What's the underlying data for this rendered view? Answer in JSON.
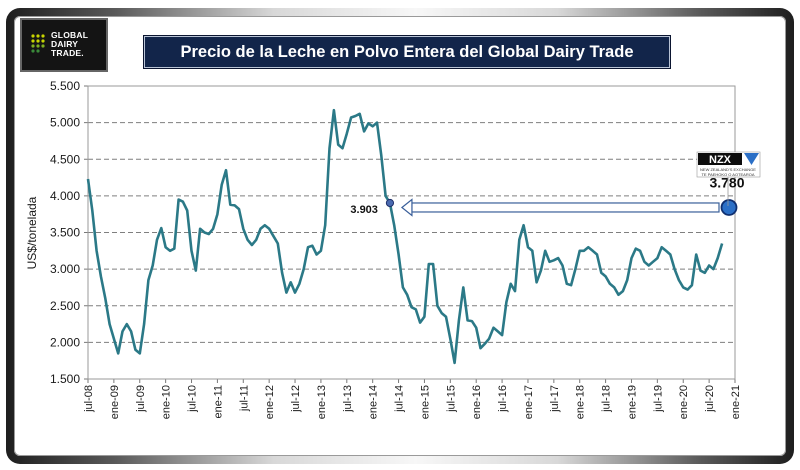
{
  "logo": {
    "text_lines": [
      "GLOBAL",
      "DAIRY",
      "TRADE."
    ]
  },
  "colors": {
    "line": "#2b7987",
    "title_bg": "#12254a",
    "callout_fill": "#2b6fc6",
    "grid": "#7f7f7f"
  },
  "chart_data": {
    "type": "line",
    "title": "Precio de la Leche en Polvo Entera del Global  Dairy Trade",
    "xlabel": "",
    "ylabel": "US$/tonelada",
    "ylim": [
      1500,
      5500
    ],
    "yticks": [
      1500,
      2000,
      2500,
      3000,
      3500,
      4000,
      4500,
      5000,
      5500
    ],
    "ytick_labels": [
      "1.500",
      "2.000",
      "2.500",
      "3.000",
      "3.500",
      "4.000",
      "4.500",
      "5.000",
      "5.500"
    ],
    "xrange": [
      0,
      150
    ],
    "xticks": [
      {
        "x": 0,
        "label": "jul-08"
      },
      {
        "x": 6,
        "label": "ene-09"
      },
      {
        "x": 12,
        "label": "jul-09"
      },
      {
        "x": 18,
        "label": "ene-10"
      },
      {
        "x": 24,
        "label": "jul-10"
      },
      {
        "x": 30,
        "label": "ene-11"
      },
      {
        "x": 36,
        "label": "jul-11"
      },
      {
        "x": 42,
        "label": "ene-12"
      },
      {
        "x": 48,
        "label": "jul-12"
      },
      {
        "x": 54,
        "label": "ene-13"
      },
      {
        "x": 60,
        "label": "jul-13"
      },
      {
        "x": 66,
        "label": "ene-14"
      },
      {
        "x": 72,
        "label": "jul-14"
      },
      {
        "x": 78,
        "label": "ene-15"
      },
      {
        "x": 84,
        "label": "jul-15"
      },
      {
        "x": 90,
        "label": "ene-16"
      },
      {
        "x": 96,
        "label": "jul-16"
      },
      {
        "x": 102,
        "label": "ene-17"
      },
      {
        "x": 108,
        "label": "jul-17"
      },
      {
        "x": 114,
        "label": "ene-18"
      },
      {
        "x": 120,
        "label": "jul-18"
      },
      {
        "x": 126,
        "label": "ene-19"
      },
      {
        "x": 132,
        "label": "jul-19"
      },
      {
        "x": 138,
        "label": "ene-20"
      },
      {
        "x": 144,
        "label": "jul-20"
      },
      {
        "x": 150,
        "label": "ene-21"
      }
    ],
    "grid": true,
    "series": [
      {
        "name": "Leche en Polvo Entera",
        "points": [
          [
            0,
            4230
          ],
          [
            1,
            3800
          ],
          [
            2,
            3250
          ],
          [
            3,
            2900
          ],
          [
            4,
            2600
          ],
          [
            5,
            2250
          ],
          [
            6,
            2050
          ],
          [
            7,
            1850
          ],
          [
            8,
            2150
          ],
          [
            9,
            2250
          ],
          [
            10,
            2150
          ],
          [
            11,
            1900
          ],
          [
            12,
            1850
          ],
          [
            13,
            2250
          ],
          [
            14,
            2850
          ],
          [
            15,
            3050
          ],
          [
            16,
            3400
          ],
          [
            17,
            3560
          ],
          [
            18,
            3300
          ],
          [
            19,
            3250
          ],
          [
            20,
            3280
          ],
          [
            21,
            3950
          ],
          [
            22,
            3920
          ],
          [
            23,
            3800
          ],
          [
            24,
            3250
          ],
          [
            25,
            2980
          ],
          [
            26,
            3550
          ],
          [
            27,
            3500
          ],
          [
            28,
            3480
          ],
          [
            29,
            3550
          ],
          [
            30,
            3750
          ],
          [
            31,
            4150
          ],
          [
            32,
            4350
          ],
          [
            33,
            3880
          ],
          [
            34,
            3870
          ],
          [
            35,
            3820
          ],
          [
            36,
            3550
          ],
          [
            37,
            3400
          ],
          [
            38,
            3330
          ],
          [
            39,
            3400
          ],
          [
            40,
            3550
          ],
          [
            41,
            3600
          ],
          [
            42,
            3550
          ],
          [
            43,
            3450
          ],
          [
            44,
            3350
          ],
          [
            45,
            2950
          ],
          [
            46,
            2680
          ],
          [
            47,
            2820
          ],
          [
            48,
            2680
          ],
          [
            49,
            2800
          ],
          [
            50,
            3000
          ],
          [
            51,
            3300
          ],
          [
            52,
            3320
          ],
          [
            53,
            3200
          ],
          [
            54,
            3250
          ],
          [
            55,
            3600
          ],
          [
            56,
            4650
          ],
          [
            57,
            5170
          ],
          [
            58,
            4700
          ],
          [
            59,
            4650
          ],
          [
            60,
            4850
          ],
          [
            61,
            5070
          ],
          [
            62,
            5090
          ],
          [
            63,
            5120
          ],
          [
            64,
            4880
          ],
          [
            65,
            4990
          ],
          [
            66,
            4950
          ],
          [
            67,
            5000
          ],
          [
            68,
            4550
          ],
          [
            69,
            4000
          ],
          [
            70,
            3903
          ],
          [
            71,
            3600
          ],
          [
            72,
            3200
          ],
          [
            73,
            2750
          ],
          [
            74,
            2650
          ],
          [
            75,
            2480
          ],
          [
            76,
            2450
          ],
          [
            77,
            2270
          ],
          [
            78,
            2350
          ],
          [
            79,
            3070
          ],
          [
            80,
            3070
          ],
          [
            81,
            2500
          ],
          [
            82,
            2400
          ],
          [
            83,
            2350
          ],
          [
            84,
            2050
          ],
          [
            85,
            1720
          ],
          [
            86,
            2300
          ],
          [
            87,
            2750
          ],
          [
            88,
            2300
          ],
          [
            89,
            2290
          ],
          [
            90,
            2200
          ],
          [
            91,
            1920
          ],
          [
            92,
            1980
          ],
          [
            93,
            2050
          ],
          [
            94,
            2200
          ],
          [
            95,
            2150
          ],
          [
            96,
            2100
          ],
          [
            97,
            2550
          ],
          [
            98,
            2800
          ],
          [
            99,
            2700
          ],
          [
            100,
            3400
          ],
          [
            101,
            3600
          ],
          [
            102,
            3300
          ],
          [
            103,
            3250
          ],
          [
            104,
            2820
          ],
          [
            105,
            2980
          ],
          [
            106,
            3250
          ],
          [
            107,
            3100
          ],
          [
            108,
            3120
          ],
          [
            109,
            3150
          ],
          [
            110,
            3050
          ],
          [
            111,
            2800
          ],
          [
            112,
            2780
          ],
          [
            113,
            3000
          ],
          [
            114,
            3250
          ],
          [
            115,
            3250
          ],
          [
            116,
            3300
          ],
          [
            117,
            3250
          ],
          [
            118,
            3200
          ],
          [
            119,
            2950
          ],
          [
            120,
            2900
          ],
          [
            121,
            2800
          ],
          [
            122,
            2750
          ],
          [
            123,
            2650
          ],
          [
            124,
            2700
          ],
          [
            125,
            2850
          ],
          [
            126,
            3150
          ],
          [
            127,
            3280
          ],
          [
            128,
            3250
          ],
          [
            129,
            3100
          ],
          [
            130,
            3050
          ],
          [
            131,
            3100
          ],
          [
            132,
            3150
          ],
          [
            133,
            3300
          ],
          [
            134,
            3250
          ],
          [
            135,
            3200
          ],
          [
            136,
            3000
          ],
          [
            137,
            2850
          ],
          [
            138,
            2750
          ],
          [
            139,
            2720
          ],
          [
            140,
            2780
          ],
          [
            141,
            3200
          ],
          [
            142,
            2980
          ],
          [
            143,
            2950
          ],
          [
            144,
            3050
          ],
          [
            145,
            3000
          ],
          [
            146,
            3150
          ],
          [
            147,
            3350
          ]
        ]
      }
    ],
    "annotations": [
      {
        "label": "3.903",
        "x": 70,
        "y": 3903
      },
      {
        "label": "3.780",
        "x": 150,
        "y": 3780
      }
    ],
    "callout": {
      "badge": "NZX",
      "badge_sub_lines": [
        "NEW ZEALAND'S EXCHANGE",
        "TE PAEHOKO O AOTEAROA"
      ]
    }
  }
}
